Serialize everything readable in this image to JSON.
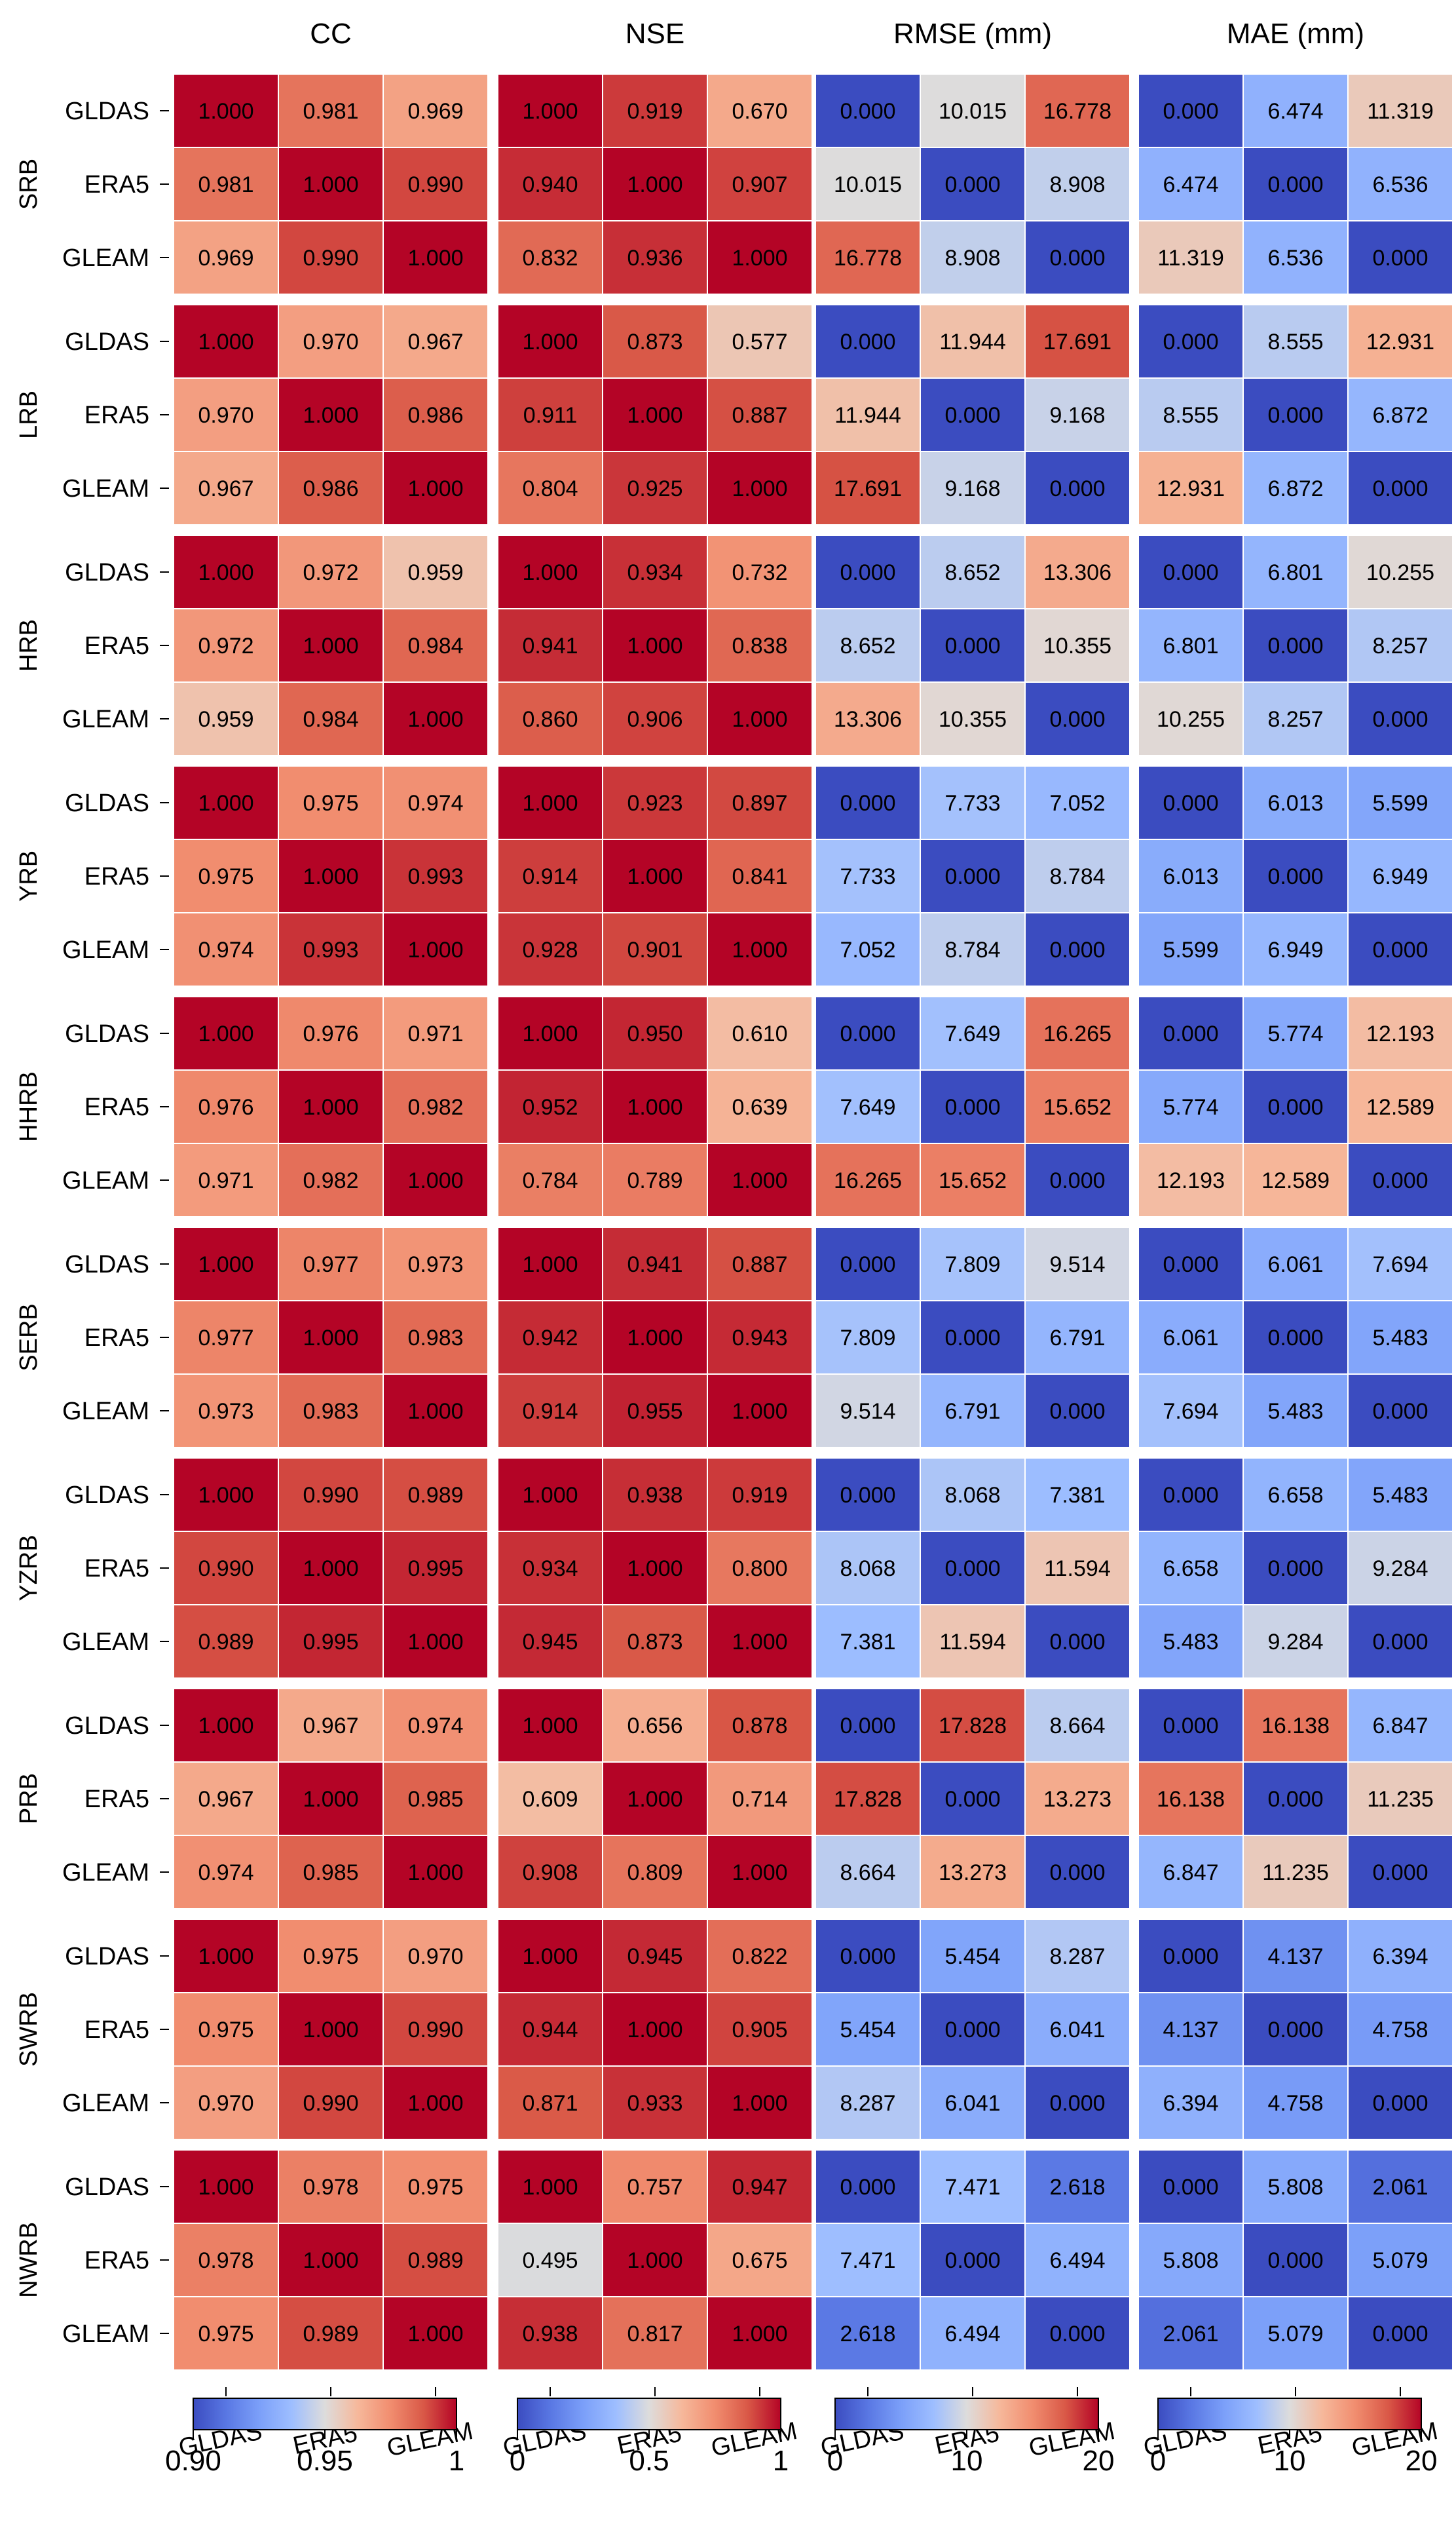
{
  "chart_data": {
    "type": "heatmap",
    "datasets": [
      "GLDAS",
      "ERA5",
      "GLEAM"
    ],
    "panels": [
      {
        "key": "CC",
        "title": "CC",
        "range": [
          0.9,
          1.0
        ],
        "cbar_ticks": [
          "0.90",
          "0.95",
          "1"
        ],
        "cbar_values": [
          0.9,
          0.95,
          1.0
        ]
      },
      {
        "key": "NSE",
        "title": "NSE",
        "range": [
          0.0,
          1.0
        ],
        "cbar_ticks": [
          "0",
          "0.5",
          "1"
        ],
        "cbar_values": [
          0,
          0.5,
          1.0
        ]
      },
      {
        "key": "RMSE",
        "title": "RMSE (mm)",
        "range": [
          0,
          20
        ],
        "cbar_ticks": [
          "0",
          "10",
          "20"
        ],
        "cbar_values": [
          0,
          10,
          20
        ]
      },
      {
        "key": "MAE",
        "title": "MAE (mm)",
        "range": [
          0,
          20
        ],
        "cbar_ticks": [
          "0",
          "10",
          "20"
        ],
        "cbar_values": [
          0,
          10,
          20
        ]
      }
    ],
    "basins": [
      {
        "name": "SRB",
        "CC": [
          [
            "1.000",
            "0.981",
            "0.969"
          ],
          [
            "0.981",
            "1.000",
            "0.990"
          ],
          [
            "0.969",
            "0.990",
            "1.000"
          ]
        ],
        "NSE": [
          [
            "1.000",
            "0.919",
            "0.670"
          ],
          [
            "0.940",
            "1.000",
            "0.907"
          ],
          [
            "0.832",
            "0.936",
            "1.000"
          ]
        ],
        "RMSE": [
          [
            "0.000",
            "10.015",
            "16.778"
          ],
          [
            "10.015",
            "0.000",
            "8.908"
          ],
          [
            "16.778",
            "8.908",
            "0.000"
          ]
        ],
        "MAE": [
          [
            "0.000",
            "6.474",
            "11.319"
          ],
          [
            "6.474",
            "0.000",
            "6.536"
          ],
          [
            "11.319",
            "6.536",
            "0.000"
          ]
        ]
      },
      {
        "name": "LRB",
        "CC": [
          [
            "1.000",
            "0.970",
            "0.967"
          ],
          [
            "0.970",
            "1.000",
            "0.986"
          ],
          [
            "0.967",
            "0.986",
            "1.000"
          ]
        ],
        "NSE": [
          [
            "1.000",
            "0.873",
            "0.577"
          ],
          [
            "0.911",
            "1.000",
            "0.887"
          ],
          [
            "0.804",
            "0.925",
            "1.000"
          ]
        ],
        "RMSE": [
          [
            "0.000",
            "11.944",
            "17.691"
          ],
          [
            "11.944",
            "0.000",
            "9.168"
          ],
          [
            "17.691",
            "9.168",
            "0.000"
          ]
        ],
        "MAE": [
          [
            "0.000",
            "8.555",
            "12.931"
          ],
          [
            "8.555",
            "0.000",
            "6.872"
          ],
          [
            "12.931",
            "6.872",
            "0.000"
          ]
        ]
      },
      {
        "name": "HRB",
        "CC": [
          [
            "1.000",
            "0.972",
            "0.959"
          ],
          [
            "0.972",
            "1.000",
            "0.984"
          ],
          [
            "0.959",
            "0.984",
            "1.000"
          ]
        ],
        "NSE": [
          [
            "1.000",
            "0.934",
            "0.732"
          ],
          [
            "0.941",
            "1.000",
            "0.838"
          ],
          [
            "0.860",
            "0.906",
            "1.000"
          ]
        ],
        "RMSE": [
          [
            "0.000",
            "8.652",
            "13.306"
          ],
          [
            "8.652",
            "0.000",
            "10.355"
          ],
          [
            "13.306",
            "10.355",
            "0.000"
          ]
        ],
        "MAE": [
          [
            "0.000",
            "6.801",
            "10.255"
          ],
          [
            "6.801",
            "0.000",
            "8.257"
          ],
          [
            "10.255",
            "8.257",
            "0.000"
          ]
        ]
      },
      {
        "name": "YRB",
        "CC": [
          [
            "1.000",
            "0.975",
            "0.974"
          ],
          [
            "0.975",
            "1.000",
            "0.993"
          ],
          [
            "0.974",
            "0.993",
            "1.000"
          ]
        ],
        "NSE": [
          [
            "1.000",
            "0.923",
            "0.897"
          ],
          [
            "0.914",
            "1.000",
            "0.841"
          ],
          [
            "0.928",
            "0.901",
            "1.000"
          ]
        ],
        "RMSE": [
          [
            "0.000",
            "7.733",
            "7.052"
          ],
          [
            "7.733",
            "0.000",
            "8.784"
          ],
          [
            "7.052",
            "8.784",
            "0.000"
          ]
        ],
        "MAE": [
          [
            "0.000",
            "6.013",
            "5.599"
          ],
          [
            "6.013",
            "0.000",
            "6.949"
          ],
          [
            "5.599",
            "6.949",
            "0.000"
          ]
        ]
      },
      {
        "name": "HHRB",
        "CC": [
          [
            "1.000",
            "0.976",
            "0.971"
          ],
          [
            "0.976",
            "1.000",
            "0.982"
          ],
          [
            "0.971",
            "0.982",
            "1.000"
          ]
        ],
        "NSE": [
          [
            "1.000",
            "0.950",
            "0.610"
          ],
          [
            "0.952",
            "1.000",
            "0.639"
          ],
          [
            "0.784",
            "0.789",
            "1.000"
          ]
        ],
        "RMSE": [
          [
            "0.000",
            "7.649",
            "16.265"
          ],
          [
            "7.649",
            "0.000",
            "15.652"
          ],
          [
            "16.265",
            "15.652",
            "0.000"
          ]
        ],
        "MAE": [
          [
            "0.000",
            "5.774",
            "12.193"
          ],
          [
            "5.774",
            "0.000",
            "12.589"
          ],
          [
            "12.193",
            "12.589",
            "0.000"
          ]
        ]
      },
      {
        "name": "SERB",
        "CC": [
          [
            "1.000",
            "0.977",
            "0.973"
          ],
          [
            "0.977",
            "1.000",
            "0.983"
          ],
          [
            "0.973",
            "0.983",
            "1.000"
          ]
        ],
        "NSE": [
          [
            "1.000",
            "0.941",
            "0.887"
          ],
          [
            "0.942",
            "1.000",
            "0.943"
          ],
          [
            "0.914",
            "0.955",
            "1.000"
          ]
        ],
        "RMSE": [
          [
            "0.000",
            "7.809",
            "9.514"
          ],
          [
            "7.809",
            "0.000",
            "6.791"
          ],
          [
            "9.514",
            "6.791",
            "0.000"
          ]
        ],
        "MAE": [
          [
            "0.000",
            "6.061",
            "7.694"
          ],
          [
            "6.061",
            "0.000",
            "5.483"
          ],
          [
            "7.694",
            "5.483",
            "0.000"
          ]
        ]
      },
      {
        "name": "YZRB",
        "CC": [
          [
            "1.000",
            "0.990",
            "0.989"
          ],
          [
            "0.990",
            "1.000",
            "0.995"
          ],
          [
            "0.989",
            "0.995",
            "1.000"
          ]
        ],
        "NSE": [
          [
            "1.000",
            "0.938",
            "0.919"
          ],
          [
            "0.934",
            "1.000",
            "0.800"
          ],
          [
            "0.945",
            "0.873",
            "1.000"
          ]
        ],
        "RMSE": [
          [
            "0.000",
            "8.068",
            "7.381"
          ],
          [
            "8.068",
            "0.000",
            "11.594"
          ],
          [
            "7.381",
            "11.594",
            "0.000"
          ]
        ],
        "MAE": [
          [
            "0.000",
            "6.658",
            "5.483"
          ],
          [
            "6.658",
            "0.000",
            "9.284"
          ],
          [
            "5.483",
            "9.284",
            "0.000"
          ]
        ]
      },
      {
        "name": "PRB",
        "CC": [
          [
            "1.000",
            "0.967",
            "0.974"
          ],
          [
            "0.967",
            "1.000",
            "0.985"
          ],
          [
            "0.974",
            "0.985",
            "1.000"
          ]
        ],
        "NSE": [
          [
            "1.000",
            "0.656",
            "0.878"
          ],
          [
            "0.609",
            "1.000",
            "0.714"
          ],
          [
            "0.908",
            "0.809",
            "1.000"
          ]
        ],
        "RMSE": [
          [
            "0.000",
            "17.828",
            "8.664"
          ],
          [
            "17.828",
            "0.000",
            "13.273"
          ],
          [
            "8.664",
            "13.273",
            "0.000"
          ]
        ],
        "MAE": [
          [
            "0.000",
            "16.138",
            "6.847"
          ],
          [
            "16.138",
            "0.000",
            "11.235"
          ],
          [
            "6.847",
            "11.235",
            "0.000"
          ]
        ]
      },
      {
        "name": "SWRB",
        "CC": [
          [
            "1.000",
            "0.975",
            "0.970"
          ],
          [
            "0.975",
            "1.000",
            "0.990"
          ],
          [
            "0.970",
            "0.990",
            "1.000"
          ]
        ],
        "NSE": [
          [
            "1.000",
            "0.945",
            "0.822"
          ],
          [
            "0.944",
            "1.000",
            "0.905"
          ],
          [
            "0.871",
            "0.933",
            "1.000"
          ]
        ],
        "RMSE": [
          [
            "0.000",
            "5.454",
            "8.287"
          ],
          [
            "5.454",
            "0.000",
            "6.041"
          ],
          [
            "8.287",
            "6.041",
            "0.000"
          ]
        ],
        "MAE": [
          [
            "0.000",
            "4.137",
            "6.394"
          ],
          [
            "4.137",
            "0.000",
            "4.758"
          ],
          [
            "6.394",
            "4.758",
            "0.000"
          ]
        ]
      },
      {
        "name": "NWRB",
        "CC": [
          [
            "1.000",
            "0.978",
            "0.975"
          ],
          [
            "0.978",
            "1.000",
            "0.989"
          ],
          [
            "0.975",
            "0.989",
            "1.000"
          ]
        ],
        "NSE": [
          [
            "1.000",
            "0.757",
            "0.947"
          ],
          [
            "0.495",
            "1.000",
            "0.675"
          ],
          [
            "0.938",
            "0.817",
            "1.000"
          ]
        ],
        "RMSE": [
          [
            "0.000",
            "7.471",
            "2.618"
          ],
          [
            "7.471",
            "0.000",
            "6.494"
          ],
          [
            "2.618",
            "6.494",
            "0.000"
          ]
        ],
        "MAE": [
          [
            "0.000",
            "5.808",
            "2.061"
          ],
          [
            "5.808",
            "0.000",
            "5.079"
          ],
          [
            "2.061",
            "5.079",
            "0.000"
          ]
        ]
      }
    ],
    "colormap": "coolwarm"
  }
}
